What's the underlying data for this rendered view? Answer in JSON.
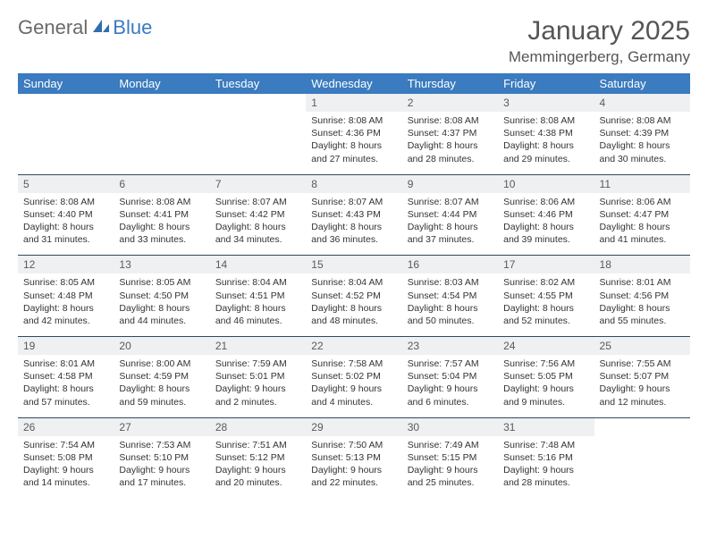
{
  "logo": {
    "part1": "General",
    "part2": "Blue"
  },
  "title": "January 2025",
  "location": "Memmingerberg, Germany",
  "header_bg": "#3b7bbf",
  "daynum_bg": "#eef0f2",
  "rule_color": "#34495e",
  "weekdays": [
    "Sunday",
    "Monday",
    "Tuesday",
    "Wednesday",
    "Thursday",
    "Friday",
    "Saturday"
  ],
  "weeks": [
    [
      null,
      null,
      null,
      {
        "n": "1",
        "sr": "Sunrise: 8:08 AM",
        "ss": "Sunset: 4:36 PM",
        "dl": "Daylight: 8 hours and 27 minutes."
      },
      {
        "n": "2",
        "sr": "Sunrise: 8:08 AM",
        "ss": "Sunset: 4:37 PM",
        "dl": "Daylight: 8 hours and 28 minutes."
      },
      {
        "n": "3",
        "sr": "Sunrise: 8:08 AM",
        "ss": "Sunset: 4:38 PM",
        "dl": "Daylight: 8 hours and 29 minutes."
      },
      {
        "n": "4",
        "sr": "Sunrise: 8:08 AM",
        "ss": "Sunset: 4:39 PM",
        "dl": "Daylight: 8 hours and 30 minutes."
      }
    ],
    [
      {
        "n": "5",
        "sr": "Sunrise: 8:08 AM",
        "ss": "Sunset: 4:40 PM",
        "dl": "Daylight: 8 hours and 31 minutes."
      },
      {
        "n": "6",
        "sr": "Sunrise: 8:08 AM",
        "ss": "Sunset: 4:41 PM",
        "dl": "Daylight: 8 hours and 33 minutes."
      },
      {
        "n": "7",
        "sr": "Sunrise: 8:07 AM",
        "ss": "Sunset: 4:42 PM",
        "dl": "Daylight: 8 hours and 34 minutes."
      },
      {
        "n": "8",
        "sr": "Sunrise: 8:07 AM",
        "ss": "Sunset: 4:43 PM",
        "dl": "Daylight: 8 hours and 36 minutes."
      },
      {
        "n": "9",
        "sr": "Sunrise: 8:07 AM",
        "ss": "Sunset: 4:44 PM",
        "dl": "Daylight: 8 hours and 37 minutes."
      },
      {
        "n": "10",
        "sr": "Sunrise: 8:06 AM",
        "ss": "Sunset: 4:46 PM",
        "dl": "Daylight: 8 hours and 39 minutes."
      },
      {
        "n": "11",
        "sr": "Sunrise: 8:06 AM",
        "ss": "Sunset: 4:47 PM",
        "dl": "Daylight: 8 hours and 41 minutes."
      }
    ],
    [
      {
        "n": "12",
        "sr": "Sunrise: 8:05 AM",
        "ss": "Sunset: 4:48 PM",
        "dl": "Daylight: 8 hours and 42 minutes."
      },
      {
        "n": "13",
        "sr": "Sunrise: 8:05 AM",
        "ss": "Sunset: 4:50 PM",
        "dl": "Daylight: 8 hours and 44 minutes."
      },
      {
        "n": "14",
        "sr": "Sunrise: 8:04 AM",
        "ss": "Sunset: 4:51 PM",
        "dl": "Daylight: 8 hours and 46 minutes."
      },
      {
        "n": "15",
        "sr": "Sunrise: 8:04 AM",
        "ss": "Sunset: 4:52 PM",
        "dl": "Daylight: 8 hours and 48 minutes."
      },
      {
        "n": "16",
        "sr": "Sunrise: 8:03 AM",
        "ss": "Sunset: 4:54 PM",
        "dl": "Daylight: 8 hours and 50 minutes."
      },
      {
        "n": "17",
        "sr": "Sunrise: 8:02 AM",
        "ss": "Sunset: 4:55 PM",
        "dl": "Daylight: 8 hours and 52 minutes."
      },
      {
        "n": "18",
        "sr": "Sunrise: 8:01 AM",
        "ss": "Sunset: 4:56 PM",
        "dl": "Daylight: 8 hours and 55 minutes."
      }
    ],
    [
      {
        "n": "19",
        "sr": "Sunrise: 8:01 AM",
        "ss": "Sunset: 4:58 PM",
        "dl": "Daylight: 8 hours and 57 minutes."
      },
      {
        "n": "20",
        "sr": "Sunrise: 8:00 AM",
        "ss": "Sunset: 4:59 PM",
        "dl": "Daylight: 8 hours and 59 minutes."
      },
      {
        "n": "21",
        "sr": "Sunrise: 7:59 AM",
        "ss": "Sunset: 5:01 PM",
        "dl": "Daylight: 9 hours and 2 minutes."
      },
      {
        "n": "22",
        "sr": "Sunrise: 7:58 AM",
        "ss": "Sunset: 5:02 PM",
        "dl": "Daylight: 9 hours and 4 minutes."
      },
      {
        "n": "23",
        "sr": "Sunrise: 7:57 AM",
        "ss": "Sunset: 5:04 PM",
        "dl": "Daylight: 9 hours and 6 minutes."
      },
      {
        "n": "24",
        "sr": "Sunrise: 7:56 AM",
        "ss": "Sunset: 5:05 PM",
        "dl": "Daylight: 9 hours and 9 minutes."
      },
      {
        "n": "25",
        "sr": "Sunrise: 7:55 AM",
        "ss": "Sunset: 5:07 PM",
        "dl": "Daylight: 9 hours and 12 minutes."
      }
    ],
    [
      {
        "n": "26",
        "sr": "Sunrise: 7:54 AM",
        "ss": "Sunset: 5:08 PM",
        "dl": "Daylight: 9 hours and 14 minutes."
      },
      {
        "n": "27",
        "sr": "Sunrise: 7:53 AM",
        "ss": "Sunset: 5:10 PM",
        "dl": "Daylight: 9 hours and 17 minutes."
      },
      {
        "n": "28",
        "sr": "Sunrise: 7:51 AM",
        "ss": "Sunset: 5:12 PM",
        "dl": "Daylight: 9 hours and 20 minutes."
      },
      {
        "n": "29",
        "sr": "Sunrise: 7:50 AM",
        "ss": "Sunset: 5:13 PM",
        "dl": "Daylight: 9 hours and 22 minutes."
      },
      {
        "n": "30",
        "sr": "Sunrise: 7:49 AM",
        "ss": "Sunset: 5:15 PM",
        "dl": "Daylight: 9 hours and 25 minutes."
      },
      {
        "n": "31",
        "sr": "Sunrise: 7:48 AM",
        "ss": "Sunset: 5:16 PM",
        "dl": "Daylight: 9 hours and 28 minutes."
      },
      null
    ]
  ]
}
